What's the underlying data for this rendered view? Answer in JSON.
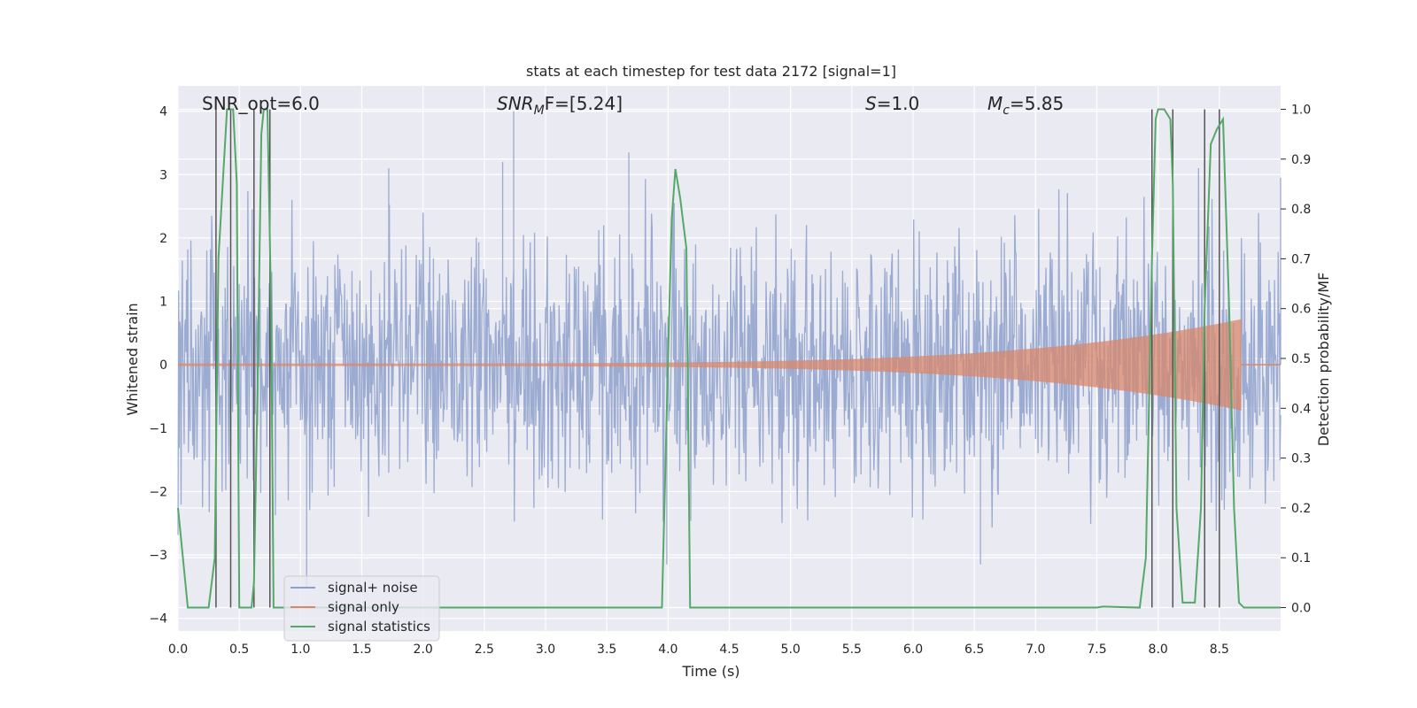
{
  "chart_data": {
    "type": "line",
    "title": "stats at each timestep for test data 2172 [signal=1]",
    "xlabel": "Time (s)",
    "ylabel_left": "Whitened strain",
    "ylabel_right": "Detection probability/MF",
    "xlim": [
      0.0,
      9.0
    ],
    "ylim_left": [
      -4.2,
      4.4
    ],
    "ylim_right": [
      -0.047,
      1.047
    ],
    "x_ticks": [
      "0.0",
      "0.5",
      "1.0",
      "1.5",
      "2.0",
      "2.5",
      "3.0",
      "3.5",
      "4.0",
      "4.5",
      "5.0",
      "5.5",
      "6.0",
      "6.5",
      "7.0",
      "7.5",
      "8.0",
      "8.5"
    ],
    "y_ticks_left": [
      "4",
      "3",
      "2",
      "1",
      "0",
      "−1",
      "−2",
      "−3",
      "−4"
    ],
    "y_ticks_right": [
      "1.0",
      "0.9",
      "0.8",
      "0.7",
      "0.6",
      "0.5",
      "0.4",
      "0.3",
      "0.2",
      "0.1",
      "0.0"
    ],
    "grid": true,
    "legend_position": "lower-left",
    "annotations": {
      "snr_opt": "SNR_opt=6.0",
      "snr_mf_italic": "SNR",
      "snr_mf_sub": "M",
      "snr_mf_rest": "F=[5.24]",
      "s_italic": "S",
      "s_rest": "=1.0",
      "mc_italic": "M",
      "mc_sub": "c",
      "mc_rest": "=5.85"
    },
    "series": [
      {
        "name": "signal+ noise",
        "color": "#8da0cb",
        "kind": "noise",
        "typical_amplitude": 1.9,
        "peak_points": [
          {
            "x": 2.74,
            "y": 4.0
          },
          {
            "x": 2.65,
            "y": 3.2
          },
          {
            "x": 3.68,
            "y": 3.35
          },
          {
            "x": 1.72,
            "y": 3.1
          },
          {
            "x": 3.99,
            "y": -3.15
          },
          {
            "x": 6.55,
            "y": -3.15
          },
          {
            "x": 1.05,
            "y": -3.5
          },
          {
            "x": 9.0,
            "y": 2.95
          }
        ]
      },
      {
        "name": "signal only",
        "color": "#d8876b",
        "kind": "chirp",
        "end_time": 8.68,
        "max_amplitude": 0.7
      },
      {
        "name": "signal statistics",
        "color": "#55a868",
        "axis": "right",
        "x": [
          0.0,
          0.08,
          0.25,
          0.3,
          0.33,
          0.4,
          0.45,
          0.48,
          0.5,
          0.55,
          0.6,
          0.62,
          0.65,
          0.68,
          0.7,
          0.73,
          0.76,
          0.78,
          0.82,
          3.0,
          3.95,
          4.0,
          4.03,
          4.06,
          4.1,
          4.15,
          4.18,
          4.25,
          7.5,
          7.55,
          7.85,
          7.9,
          7.95,
          7.98,
          8.0,
          8.05,
          8.1,
          8.12,
          8.15,
          8.2,
          8.25,
          8.3,
          8.35,
          8.38,
          8.43,
          8.48,
          8.53,
          8.58,
          8.62,
          8.66,
          8.7,
          8.75,
          9.0
        ],
        "y": [
          0.2,
          0.0,
          0.0,
          0.1,
          0.7,
          1.0,
          1.0,
          0.85,
          0.0,
          0.0,
          0.0,
          0.05,
          0.45,
          0.95,
          1.0,
          1.0,
          0.6,
          0.0,
          0.0,
          0.0,
          0.0,
          0.5,
          0.78,
          0.88,
          0.82,
          0.72,
          0.0,
          0.0,
          0.0,
          0.002,
          0.0,
          0.1,
          0.7,
          0.98,
          1.0,
          1.0,
          0.98,
          0.85,
          0.2,
          0.01,
          0.01,
          0.01,
          0.2,
          0.6,
          0.93,
          0.96,
          0.98,
          0.6,
          0.2,
          0.01,
          0.0,
          0.0,
          0.0
        ]
      },
      {
        "name": "",
        "color": "#555555",
        "kind": "vlines",
        "axis": "right",
        "x": [
          0.31,
          0.43,
          0.62,
          0.75,
          7.95,
          8.12,
          8.38,
          8.5
        ],
        "y_range": [
          0.0,
          1.0
        ]
      }
    ]
  }
}
